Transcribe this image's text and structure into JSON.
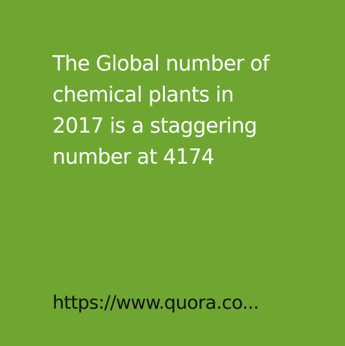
{
  "card": {
    "background_color": "#6fa632",
    "text_color": "#ffffff",
    "headline_lines": [
      "The Global number of",
      "chemical plants in",
      "2017 is a staggering",
      "number at 4174"
    ],
    "source_text": "https://www.quora.co..."
  }
}
